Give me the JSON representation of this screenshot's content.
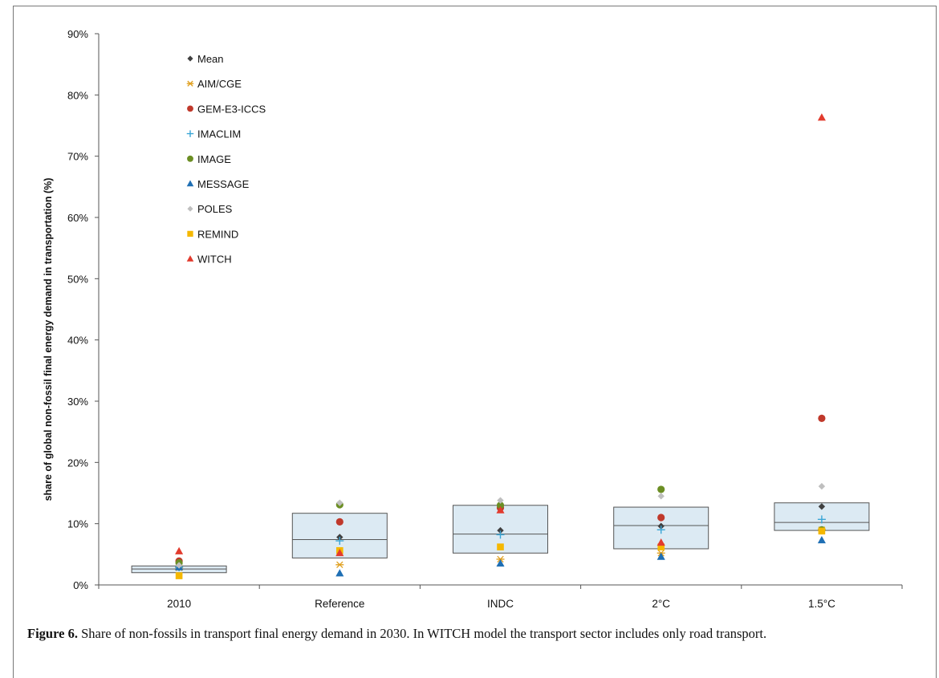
{
  "chart_data": {
    "type": "scatter",
    "ylabel": "share of global non-fossil final energy demand in transportation (%)",
    "xlabel": "",
    "ylim": [
      0,
      90
    ],
    "yticks": [
      "0%",
      "10%",
      "20%",
      "30%",
      "40%",
      "50%",
      "60%",
      "70%",
      "80%",
      "90%"
    ],
    "categories": [
      "2010",
      "Reference",
      "INDC",
      "2°C",
      "1.5°C"
    ],
    "legend_position": "top-left",
    "boxes": [
      {
        "category": "2010",
        "q1": 2.0,
        "median": 2.6,
        "q3": 3.1
      },
      {
        "category": "Reference",
        "q1": 4.4,
        "median": 7.4,
        "q3": 11.7
      },
      {
        "category": "INDC",
        "q1": 5.2,
        "median": 8.3,
        "q3": 13.0
      },
      {
        "category": "2°C",
        "q1": 5.9,
        "median": 9.7,
        "q3": 12.7
      },
      {
        "category": "1.5°C",
        "q1": 8.9,
        "median": 10.2,
        "q3": 13.4
      }
    ],
    "series": [
      {
        "name": "Mean",
        "marker": "diamond",
        "color": "#404040",
        "values": [
          2.8,
          7.8,
          8.9,
          9.6,
          12.8
        ]
      },
      {
        "name": "AIM/CGE",
        "marker": "asterisk",
        "color": "#E0A020",
        "values": [
          2.8,
          3.3,
          4.2,
          5.2,
          9.0
        ]
      },
      {
        "name": "GEM-E3-ICCS",
        "marker": "circle",
        "color": "#C0392B",
        "values": [
          3.9,
          10.3,
          12.6,
          11.0,
          27.2
        ]
      },
      {
        "name": "IMACLIM",
        "marker": "plus",
        "color": "#3AA6D6",
        "values": [
          2.9,
          7.2,
          8.2,
          9.0,
          10.7
        ]
      },
      {
        "name": "IMAGE",
        "marker": "circle",
        "color": "#6B8E23",
        "values": [
          3.6,
          13.1,
          13.0,
          15.6,
          9.0
        ]
      },
      {
        "name": "MESSAGE",
        "marker": "triangle",
        "color": "#1F6FB4",
        "values": [
          2.9,
          1.9,
          3.5,
          4.6,
          7.3
        ]
      },
      {
        "name": "POLES",
        "marker": "diamond",
        "color": "#BFBFBF",
        "values": [
          3.2,
          13.4,
          13.8,
          14.5,
          16.1
        ]
      },
      {
        "name": "REMIND",
        "marker": "square",
        "color": "#F5B800",
        "values": [
          1.5,
          5.6,
          6.2,
          6.2,
          8.8
        ]
      },
      {
        "name": "WITCH",
        "marker": "triangle",
        "color": "#E23B2E",
        "values": [
          5.5,
          5.2,
          12.2,
          6.9,
          76.3
        ]
      }
    ],
    "colors": {
      "box_fill": "#DCEAF3",
      "box_stroke": "#555555",
      "axis": "#555555"
    }
  },
  "caption": {
    "label": "Figure 6.",
    "text": " Share of non-fossils in transport final energy demand in 2030. In WITCH model the transport sector includes only road transport."
  }
}
